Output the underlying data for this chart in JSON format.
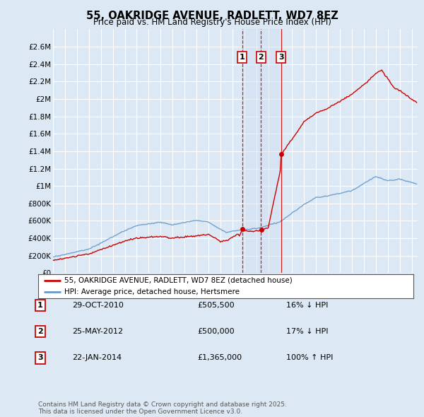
{
  "title": "55, OAKRIDGE AVENUE, RADLETT, WD7 8EZ",
  "subtitle": "Price paid vs. HM Land Registry's House Price Index (HPI)",
  "background_color": "#dce9f5",
  "plot_bg_color": "#dce9f5",
  "grid_color": "#ffffff",
  "ylim": [
    0,
    2800000
  ],
  "yticks": [
    0,
    200000,
    400000,
    600000,
    800000,
    1000000,
    1200000,
    1400000,
    1600000,
    1800000,
    2000000,
    2200000,
    2400000,
    2600000
  ],
  "ytick_labels": [
    "£0",
    "£200K",
    "£400K",
    "£600K",
    "£800K",
    "£1M",
    "£1.2M",
    "£1.4M",
    "£1.6M",
    "£1.8M",
    "£2M",
    "£2.2M",
    "£2.4M",
    "£2.6M"
  ],
  "xmin": 1995.0,
  "xmax": 2025.5,
  "sale_color": "#cc0000",
  "hpi_color": "#6699cc",
  "vline_color_solid": "#cc0000",
  "vline_color_dashed": "#cc0000",
  "shade_color": "#c8d8ee",
  "transactions": [
    {
      "num": 1,
      "date": 2010.83,
      "price": 505500,
      "label": "1",
      "style": "dashed"
    },
    {
      "num": 2,
      "date": 2012.4,
      "price": 500000,
      "label": "2",
      "style": "dashed"
    },
    {
      "num": 3,
      "date": 2014.07,
      "price": 1365000,
      "label": "3",
      "style": "solid"
    }
  ],
  "legend_line1": "55, OAKRIDGE AVENUE, RADLETT, WD7 8EZ (detached house)",
  "legend_line2": "HPI: Average price, detached house, Hertsmere",
  "table_rows": [
    {
      "num": "1",
      "date": "29-OCT-2010",
      "price": "£505,500",
      "pct": "16% ↓ HPI"
    },
    {
      "num": "2",
      "date": "25-MAY-2012",
      "price": "£500,000",
      "pct": "17% ↓ HPI"
    },
    {
      "num": "3",
      "date": "22-JAN-2014",
      "price": "£1,365,000",
      "pct": "100% ↑ HPI"
    }
  ],
  "footer": "Contains HM Land Registry data © Crown copyright and database right 2025.\nThis data is licensed under the Open Government Licence v3.0."
}
